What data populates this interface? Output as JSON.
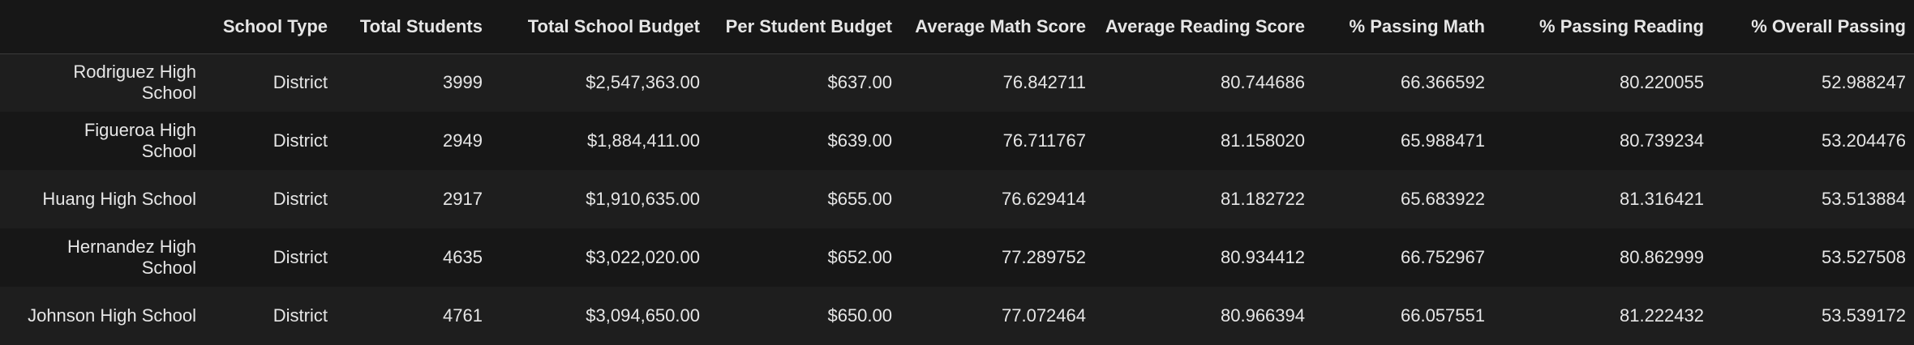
{
  "columns": {
    "index": "",
    "school_type": "School Type",
    "total_students": "Total Students",
    "total_budget": "Total School Budget",
    "per_student_budget": "Per Student Budget",
    "avg_math": "Average Math Score",
    "avg_reading": "Average Reading Score",
    "pct_math": "% Passing Math",
    "pct_reading": "% Passing Reading",
    "pct_overall": "% Overall Passing"
  },
  "rows": [
    {
      "school": "Rodriguez High School",
      "school_type": "District",
      "total_students": "3999",
      "total_budget": "$2,547,363.00",
      "per_student_budget": "$637.00",
      "avg_math": "76.842711",
      "avg_reading": "80.744686",
      "pct_math": "66.366592",
      "pct_reading": "80.220055",
      "pct_overall": "52.988247"
    },
    {
      "school": "Figueroa High School",
      "school_type": "District",
      "total_students": "2949",
      "total_budget": "$1,884,411.00",
      "per_student_budget": "$639.00",
      "avg_math": "76.711767",
      "avg_reading": "81.158020",
      "pct_math": "65.988471",
      "pct_reading": "80.739234",
      "pct_overall": "53.204476"
    },
    {
      "school": "Huang High School",
      "school_type": "District",
      "total_students": "2917",
      "total_budget": "$1,910,635.00",
      "per_student_budget": "$655.00",
      "avg_math": "76.629414",
      "avg_reading": "81.182722",
      "pct_math": "65.683922",
      "pct_reading": "81.316421",
      "pct_overall": "53.513884"
    },
    {
      "school": "Hernandez High School",
      "school_type": "District",
      "total_students": "4635",
      "total_budget": "$3,022,020.00",
      "per_student_budget": "$652.00",
      "avg_math": "77.289752",
      "avg_reading": "80.934412",
      "pct_math": "66.752967",
      "pct_reading": "80.862999",
      "pct_overall": "53.527508"
    },
    {
      "school": "Johnson High School",
      "school_type": "District",
      "total_students": "4761",
      "total_budget": "$3,094,650.00",
      "per_student_budget": "$650.00",
      "avg_math": "77.072464",
      "avg_reading": "80.966394",
      "pct_math": "66.057551",
      "pct_reading": "81.222432",
      "pct_overall": "53.539172"
    }
  ],
  "colors": {
    "background": "#171717",
    "row_alt": "#1e1e1e",
    "text": "#e6e6e6"
  }
}
